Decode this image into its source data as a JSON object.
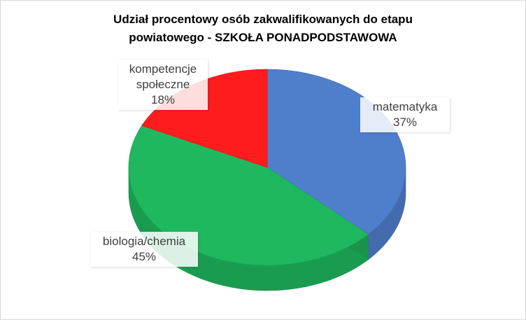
{
  "chart_data": {
    "type": "pie",
    "title": "Udział procentowy osób zakwalifikowanych do etapu powiatowego - SZKOŁA PONADPODSTAWOWA",
    "categories": [
      "matematyka",
      "biologia/chemia",
      "kompetencje społeczne"
    ],
    "values": [
      37,
      45,
      18
    ],
    "value_labels": [
      "37%",
      "45%",
      "18%"
    ],
    "colors": [
      "#4f7ecb",
      "#1fb85e",
      "#ff1c1c"
    ]
  }
}
